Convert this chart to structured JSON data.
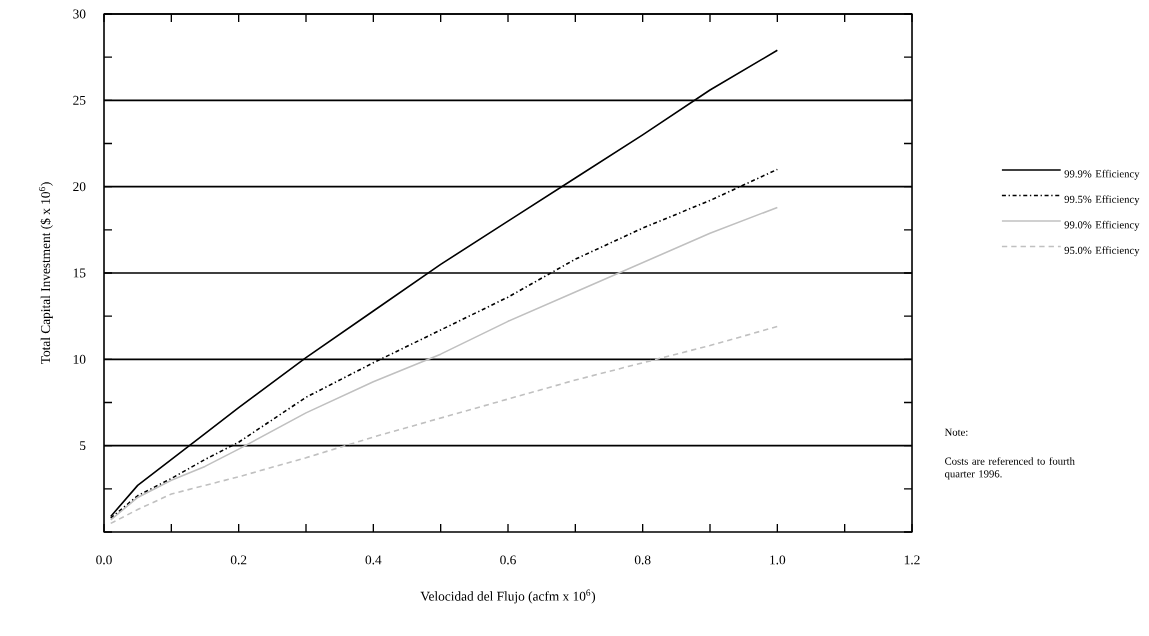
{
  "chart_data": {
    "type": "line",
    "xlabel": "Velocidad del Flujo (acfm x 10$^{6}$)",
    "ylabel": "Total Capital Investment ($ x 10$^{6}$)",
    "xlim": [
      0,
      1.2
    ],
    "ylim": [
      0,
      30
    ],
    "xticks": [
      {
        "value": 0,
        "label": "0.0"
      },
      {
        "value": 0.1,
        "label": null
      },
      {
        "value": 0.2,
        "label": "0.2"
      },
      {
        "value": 0.3,
        "label": null
      },
      {
        "value": 0.4,
        "label": "0.4"
      },
      {
        "value": 0.5,
        "label": null
      },
      {
        "value": 0.6,
        "label": "0.6"
      },
      {
        "value": 0.7,
        "label": null
      },
      {
        "value": 0.8,
        "label": "0.8"
      },
      {
        "value": 0.9,
        "label": null
      },
      {
        "value": 1.0,
        "label": "1.0"
      },
      {
        "value": 1.1,
        "label": null
      },
      {
        "value": 1.2,
        "label": "1.2"
      }
    ],
    "yticks": [
      {
        "value": 0,
        "label": null
      },
      {
        "value": 2.5,
        "label": null
      },
      5,
      {
        "value": 7.5,
        "label": null
      },
      10,
      {
        "value": 12.5,
        "label": null
      },
      15,
      {
        "value": 17.5,
        "label": null
      },
      20,
      {
        "value": 22.5,
        "label": null
      },
      25,
      {
        "value": 27.5,
        "label": null
      },
      30
    ],
    "grid": "y",
    "legend": "right",
    "marker": "none",
    "x": [
      0.01,
      0.05,
      0.1,
      0.15,
      0.2,
      0.3,
      0.4,
      0.5,
      0.6,
      0.7,
      0.8,
      0.9,
      1.0
    ],
    "series": [
      {
        "name": "99.9% Efficiency",
        "color": "#000000",
        "line_style": "solid",
        "values": [
          0.9,
          2.7,
          4.2,
          5.7,
          7.2,
          10.1,
          12.8,
          15.5,
          18.0,
          20.5,
          23.0,
          25.6,
          27.9
        ]
      },
      {
        "name": "99.5% Efficiency",
        "color": "#000000",
        "line_style": "dotted",
        "values": [
          0.8,
          2.1,
          3.1,
          4.2,
          5.2,
          7.8,
          9.8,
          11.7,
          13.6,
          15.8,
          17.6,
          19.2,
          21.0
        ]
      },
      {
        "name": "99.0% Efficiency",
        "color": "#c0c0c0",
        "line_style": "solid",
        "values": [
          0.7,
          2.0,
          3.0,
          3.8,
          4.8,
          6.9,
          8.7,
          10.3,
          12.2,
          13.9,
          15.6,
          17.3,
          18.8
        ]
      },
      {
        "name": "95.0% Efficiency",
        "color": "#c0c0c0",
        "line_style": "dashed",
        "values": [
          0.5,
          1.3,
          2.2,
          2.7,
          3.2,
          4.3,
          5.5,
          6.6,
          7.7,
          8.8,
          9.8,
          10.8,
          11.9
        ]
      }
    ],
    "annotations": [
      "Note:",
      "Costs are referenced to fourth quarter 1996."
    ]
  }
}
